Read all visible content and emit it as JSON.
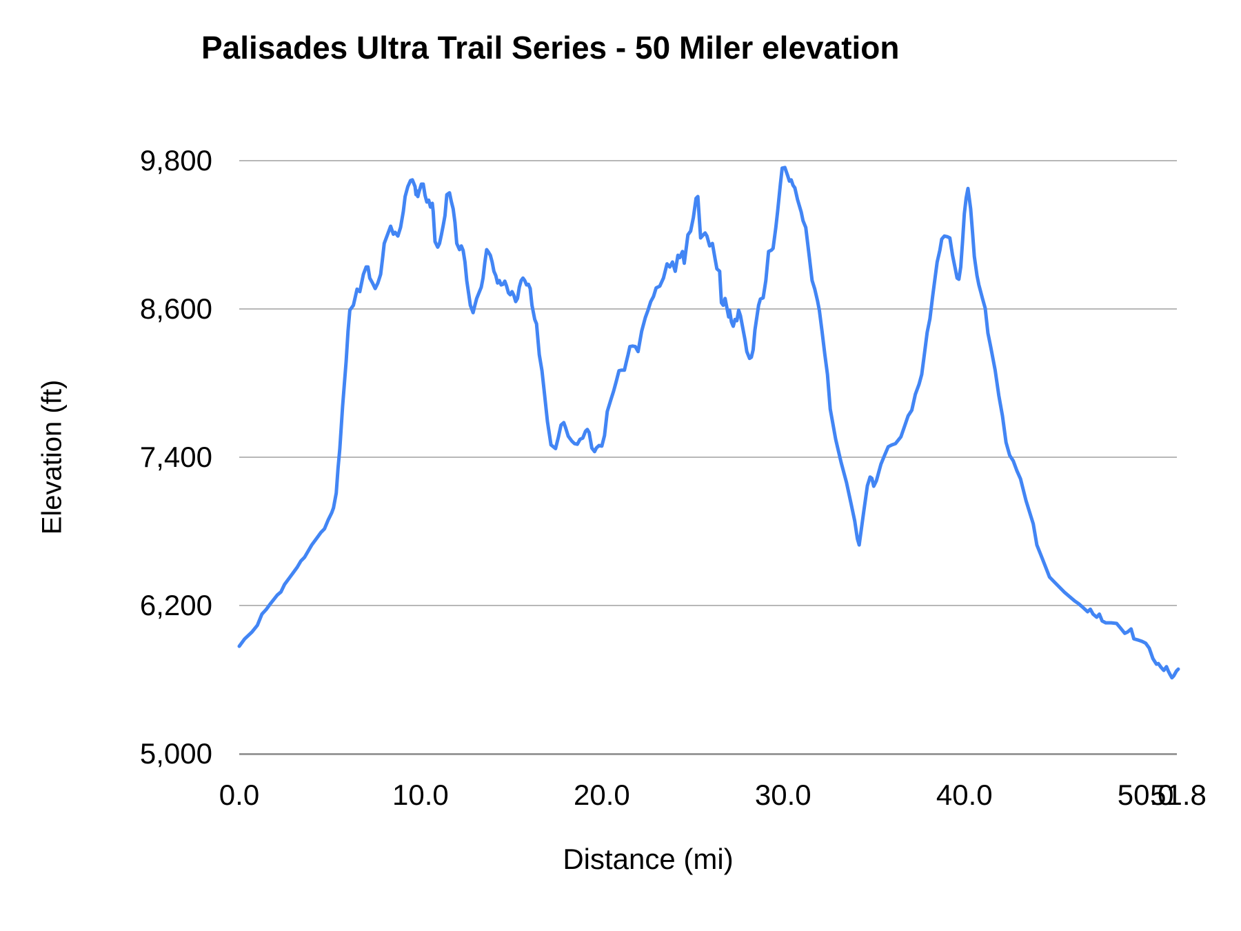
{
  "chart_data": {
    "type": "line",
    "title": "Palisades Ultra Trail Series - 50 Miler elevation",
    "xlabel": "Distance (mi)",
    "ylabel": "Elevation (ft)",
    "xlim": [
      0,
      51.8
    ],
    "ylim": [
      5000,
      9800
    ],
    "grid": "horizontal-only",
    "legend": "none",
    "series_name": "elevation-profile",
    "series_color": "#4285f4",
    "grid_color": "#b7b7b7",
    "axis_line_color": "#999999",
    "text_color": "#000000",
    "background_color": "#ffffff",
    "y_ticks": [
      {
        "value": 5000,
        "label": "5,000"
      },
      {
        "value": 6200,
        "label": "6,200"
      },
      {
        "value": 7400,
        "label": "7,400"
      },
      {
        "value": 8600,
        "label": "8,600"
      },
      {
        "value": 9800,
        "label": "9,800"
      }
    ],
    "x_ticks": [
      {
        "value": 0,
        "label": "0.0"
      },
      {
        "value": 10,
        "label": "10.0"
      },
      {
        "value": 20,
        "label": "20.0"
      },
      {
        "value": 30,
        "label": "30.0"
      },
      {
        "value": 40,
        "label": "40.0"
      },
      {
        "value": 50,
        "label": "50.0"
      },
      {
        "value": 51.8,
        "label": "51.8"
      }
    ],
    "points": [
      [
        0,
        5870
      ],
      [
        0.3,
        5930
      ],
      [
        0.7,
        5985
      ],
      [
        1,
        6040
      ],
      [
        1.25,
        6130
      ],
      [
        1.5,
        6170
      ],
      [
        1.75,
        6220
      ],
      [
        2.1,
        6285
      ],
      [
        2.3,
        6310
      ],
      [
        2.5,
        6370
      ],
      [
        2.8,
        6430
      ],
      [
        3,
        6470
      ],
      [
        3.2,
        6510
      ],
      [
        3.4,
        6560
      ],
      [
        3.6,
        6590
      ],
      [
        3.8,
        6640
      ],
      [
        4,
        6690
      ],
      [
        4.3,
        6750
      ],
      [
        4.5,
        6790
      ],
      [
        4.7,
        6820
      ],
      [
        4.9,
        6890
      ],
      [
        5.1,
        6950
      ],
      [
        5.2,
        6990
      ],
      [
        5.35,
        7110
      ],
      [
        5.45,
        7310
      ],
      [
        5.55,
        7470
      ],
      [
        5.7,
        7810
      ],
      [
        5.9,
        8180
      ],
      [
        6,
        8420
      ],
      [
        6.1,
        8590
      ],
      [
        6.3,
        8630
      ],
      [
        6.5,
        8760
      ],
      [
        6.65,
        8740
      ],
      [
        6.85,
        8880
      ],
      [
        7,
        8940
      ],
      [
        7.1,
        8940
      ],
      [
        7.2,
        8850
      ],
      [
        7.35,
        8810
      ],
      [
        7.5,
        8765
      ],
      [
        7.65,
        8810
      ],
      [
        7.8,
        8880
      ],
      [
        7.9,
        9000
      ],
      [
        8,
        9130
      ],
      [
        8.2,
        9210
      ],
      [
        8.35,
        9270
      ],
      [
        8.5,
        9205
      ],
      [
        8.6,
        9220
      ],
      [
        8.75,
        9190
      ],
      [
        8.9,
        9260
      ],
      [
        9.05,
        9390
      ],
      [
        9.15,
        9510
      ],
      [
        9.3,
        9590
      ],
      [
        9.45,
        9640
      ],
      [
        9.55,
        9645
      ],
      [
        9.7,
        9590
      ],
      [
        9.75,
        9525
      ],
      [
        9.8,
        9555
      ],
      [
        9.85,
        9510
      ],
      [
        9.9,
        9540
      ],
      [
        10.05,
        9610
      ],
      [
        10.15,
        9610
      ],
      [
        10.25,
        9520
      ],
      [
        10.35,
        9465
      ],
      [
        10.45,
        9480
      ],
      [
        10.55,
        9425
      ],
      [
        10.65,
        9455
      ],
      [
        10.7,
        9390
      ],
      [
        10.8,
        9145
      ],
      [
        10.95,
        9100
      ],
      [
        11.05,
        9130
      ],
      [
        11.15,
        9200
      ],
      [
        11.25,
        9275
      ],
      [
        11.35,
        9355
      ],
      [
        11.45,
        9525
      ],
      [
        11.6,
        9540
      ],
      [
        11.7,
        9470
      ],
      [
        11.8,
        9410
      ],
      [
        11.9,
        9300
      ],
      [
        12,
        9130
      ],
      [
        12.15,
        9080
      ],
      [
        12.25,
        9110
      ],
      [
        12.35,
        9075
      ],
      [
        12.45,
        8980
      ],
      [
        12.55,
        8830
      ],
      [
        12.65,
        8730
      ],
      [
        12.75,
        8630
      ],
      [
        12.9,
        8570
      ],
      [
        13,
        8630
      ],
      [
        13.1,
        8685
      ],
      [
        13.25,
        8740
      ],
      [
        13.35,
        8775
      ],
      [
        13.45,
        8850
      ],
      [
        13.55,
        8980
      ],
      [
        13.65,
        9080
      ],
      [
        13.75,
        9060
      ],
      [
        13.85,
        9035
      ],
      [
        13.95,
        8980
      ],
      [
        14.05,
        8905
      ],
      [
        14.15,
        8870
      ],
      [
        14.25,
        8810
      ],
      [
        14.35,
        8830
      ],
      [
        14.45,
        8795
      ],
      [
        14.55,
        8800
      ],
      [
        14.65,
        8825
      ],
      [
        14.75,
        8785
      ],
      [
        14.85,
        8730
      ],
      [
        14.95,
        8715
      ],
      [
        15.05,
        8740
      ],
      [
        15.15,
        8710
      ],
      [
        15.25,
        8660
      ],
      [
        15.35,
        8685
      ],
      [
        15.45,
        8775
      ],
      [
        15.55,
        8830
      ],
      [
        15.65,
        8850
      ],
      [
        15.75,
        8830
      ],
      [
        15.85,
        8795
      ],
      [
        15.95,
        8800
      ],
      [
        16.05,
        8765
      ],
      [
        16.15,
        8630
      ],
      [
        16.3,
        8515
      ],
      [
        16.4,
        8480
      ],
      [
        16.55,
        8230
      ],
      [
        16.7,
        8100
      ],
      [
        16.85,
        7900
      ],
      [
        17,
        7690
      ],
      [
        17.2,
        7500
      ],
      [
        17.45,
        7470
      ],
      [
        17.6,
        7560
      ],
      [
        17.75,
        7660
      ],
      [
        17.9,
        7680
      ],
      [
        18,
        7640
      ],
      [
        18.15,
        7570
      ],
      [
        18.35,
        7530
      ],
      [
        18.5,
        7510
      ],
      [
        18.65,
        7505
      ],
      [
        18.8,
        7545
      ],
      [
        18.95,
        7555
      ],
      [
        19.1,
        7610
      ],
      [
        19.2,
        7625
      ],
      [
        19.3,
        7600
      ],
      [
        19.45,
        7475
      ],
      [
        19.6,
        7445
      ],
      [
        19.7,
        7475
      ],
      [
        19.85,
        7495
      ],
      [
        20,
        7490
      ],
      [
        20.15,
        7575
      ],
      [
        20.3,
        7770
      ],
      [
        20.5,
        7865
      ],
      [
        20.65,
        7935
      ],
      [
        20.8,
        8015
      ],
      [
        20.95,
        8100
      ],
      [
        21.1,
        8105
      ],
      [
        21.25,
        8105
      ],
      [
        21.35,
        8170
      ],
      [
        21.45,
        8230
      ],
      [
        21.55,
        8295
      ],
      [
        21.7,
        8300
      ],
      [
        21.85,
        8295
      ],
      [
        22,
        8255
      ],
      [
        22.2,
        8420
      ],
      [
        22.4,
        8530
      ],
      [
        22.55,
        8590
      ],
      [
        22.7,
        8660
      ],
      [
        22.85,
        8700
      ],
      [
        23,
        8770
      ],
      [
        23.2,
        8785
      ],
      [
        23.4,
        8850
      ],
      [
        23.6,
        8965
      ],
      [
        23.75,
        8940
      ],
      [
        23.9,
        8980
      ],
      [
        24.05,
        8905
      ],
      [
        24.2,
        9035
      ],
      [
        24.3,
        9015
      ],
      [
        24.45,
        9065
      ],
      [
        24.55,
        8970
      ],
      [
        24.75,
        9200
      ],
      [
        24.9,
        9230
      ],
      [
        25.05,
        9340
      ],
      [
        25.2,
        9495
      ],
      [
        25.3,
        9510
      ],
      [
        25.45,
        9175
      ],
      [
        25.6,
        9200
      ],
      [
        25.7,
        9215
      ],
      [
        25.8,
        9190
      ],
      [
        25.95,
        9110
      ],
      [
        26.1,
        9130
      ],
      [
        26.25,
        9005
      ],
      [
        26.35,
        8925
      ],
      [
        26.5,
        8905
      ],
      [
        26.6,
        8650
      ],
      [
        26.7,
        8630
      ],
      [
        26.8,
        8685
      ],
      [
        26.9,
        8610
      ],
      [
        27,
        8535
      ],
      [
        27.05,
        8590
      ],
      [
        27.15,
        8495
      ],
      [
        27.25,
        8460
      ],
      [
        27.35,
        8515
      ],
      [
        27.45,
        8505
      ],
      [
        27.55,
        8590
      ],
      [
        27.65,
        8545
      ],
      [
        27.9,
        8350
      ],
      [
        28,
        8255
      ],
      [
        28.15,
        8200
      ],
      [
        28.25,
        8210
      ],
      [
        28.35,
        8270
      ],
      [
        28.45,
        8430
      ],
      [
        28.65,
        8630
      ],
      [
        28.75,
        8680
      ],
      [
        28.9,
        8690
      ],
      [
        29.05,
        8830
      ],
      [
        29.2,
        9065
      ],
      [
        29.35,
        9075
      ],
      [
        29.45,
        9090
      ],
      [
        29.6,
        9260
      ],
      [
        29.7,
        9390
      ],
      [
        29.85,
        9610
      ],
      [
        29.95,
        9740
      ],
      [
        30.1,
        9745
      ],
      [
        30.25,
        9680
      ],
      [
        30.35,
        9635
      ],
      [
        30.45,
        9645
      ],
      [
        30.55,
        9600
      ],
      [
        30.65,
        9580
      ],
      [
        30.8,
        9485
      ],
      [
        31,
        9385
      ],
      [
        31.1,
        9315
      ],
      [
        31.25,
        9260
      ],
      [
        31.45,
        9020
      ],
      [
        31.6,
        8830
      ],
      [
        31.75,
        8760
      ],
      [
        31.9,
        8665
      ],
      [
        32,
        8590
      ],
      [
        32.15,
        8420
      ],
      [
        32.3,
        8235
      ],
      [
        32.45,
        8070
      ],
      [
        32.6,
        7790
      ],
      [
        32.9,
        7545
      ],
      [
        33.2,
        7360
      ],
      [
        33.5,
        7195
      ],
      [
        33.75,
        7025
      ],
      [
        33.95,
        6885
      ],
      [
        34.1,
        6740
      ],
      [
        34.2,
        6690
      ],
      [
        34.45,
        6960
      ],
      [
        34.65,
        7170
      ],
      [
        34.8,
        7240
      ],
      [
        34.9,
        7230
      ],
      [
        35,
        7165
      ],
      [
        35.15,
        7210
      ],
      [
        35.4,
        7345
      ],
      [
        35.6,
        7415
      ],
      [
        35.8,
        7485
      ],
      [
        36,
        7500
      ],
      [
        36.2,
        7510
      ],
      [
        36.5,
        7565
      ],
      [
        36.7,
        7650
      ],
      [
        36.9,
        7735
      ],
      [
        37.1,
        7780
      ],
      [
        37.3,
        7910
      ],
      [
        37.5,
        7990
      ],
      [
        37.65,
        8070
      ],
      [
        37.8,
        8240
      ],
      [
        37.95,
        8410
      ],
      [
        38.1,
        8520
      ],
      [
        38.25,
        8700
      ],
      [
        38.4,
        8870
      ],
      [
        38.5,
        8980
      ],
      [
        38.65,
        9075
      ],
      [
        38.75,
        9165
      ],
      [
        38.9,
        9190
      ],
      [
        39.05,
        9185
      ],
      [
        39.2,
        9175
      ],
      [
        39.35,
        9035
      ],
      [
        39.5,
        8925
      ],
      [
        39.6,
        8850
      ],
      [
        39.7,
        8840
      ],
      [
        39.8,
        8940
      ],
      [
        39.9,
        9145
      ],
      [
        40,
        9370
      ],
      [
        40.1,
        9500
      ],
      [
        40.2,
        9575
      ],
      [
        40.35,
        9410
      ],
      [
        40.45,
        9220
      ],
      [
        40.55,
        9025
      ],
      [
        40.7,
        8870
      ],
      [
        40.8,
        8795
      ],
      [
        40.9,
        8740
      ],
      [
        41,
        8685
      ],
      [
        41.15,
        8605
      ],
      [
        41.3,
        8405
      ],
      [
        41.45,
        8295
      ],
      [
        41.7,
        8105
      ],
      [
        41.9,
        7900
      ],
      [
        42.1,
        7735
      ],
      [
        42.3,
        7520
      ],
      [
        42.5,
        7415
      ],
      [
        42.7,
        7370
      ],
      [
        42.9,
        7290
      ],
      [
        43.1,
        7225
      ],
      [
        43.4,
        7050
      ],
      [
        43.8,
        6860
      ],
      [
        44,
        6690
      ],
      [
        44.3,
        6580
      ],
      [
        44.7,
        6430
      ],
      [
        44.9,
        6400
      ],
      [
        45.2,
        6355
      ],
      [
        45.5,
        6310
      ],
      [
        45.9,
        6260
      ],
      [
        46.1,
        6235
      ],
      [
        46.3,
        6215
      ],
      [
        46.5,
        6190
      ],
      [
        46.8,
        6150
      ],
      [
        46.95,
        6170
      ],
      [
        47.1,
        6130
      ],
      [
        47.3,
        6105
      ],
      [
        47.45,
        6130
      ],
      [
        47.6,
        6075
      ],
      [
        47.8,
        6060
      ],
      [
        48.1,
        6060
      ],
      [
        48.4,
        6055
      ],
      [
        48.6,
        6020
      ],
      [
        48.85,
        5975
      ],
      [
        49,
        5985
      ],
      [
        49.2,
        6010
      ],
      [
        49.35,
        5930
      ],
      [
        49.6,
        5920
      ],
      [
        49.8,
        5910
      ],
      [
        50,
        5895
      ],
      [
        50.2,
        5855
      ],
      [
        50.4,
        5770
      ],
      [
        50.6,
        5725
      ],
      [
        50.7,
        5730
      ],
      [
        50.85,
        5700
      ],
      [
        51,
        5675
      ],
      [
        51.15,
        5705
      ],
      [
        51.25,
        5670
      ],
      [
        51.35,
        5640
      ],
      [
        51.45,
        5615
      ],
      [
        51.55,
        5630
      ],
      [
        51.7,
        5670
      ],
      [
        51.8,
        5685
      ]
    ]
  }
}
